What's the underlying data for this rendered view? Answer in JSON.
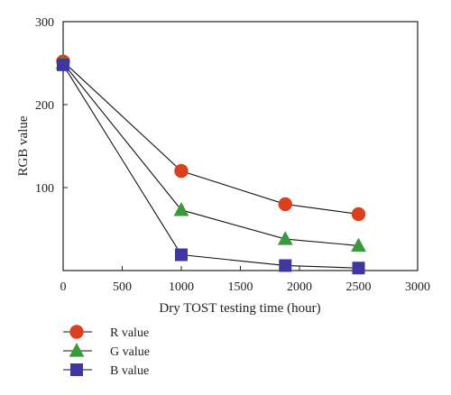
{
  "chart_data": {
    "type": "line",
    "title": "",
    "xlabel": "Dry TOST testing time (hour)",
    "ylabel": "RGB value",
    "xlim": [
      0,
      3000
    ],
    "ylim": [
      0,
      300
    ],
    "xticks": [
      0,
      500,
      1000,
      1500,
      2000,
      2500,
      3000
    ],
    "yticks": [
      100,
      200,
      300
    ],
    "ytick_labels_shown": [
      "100",
      "200",
      "300"
    ],
    "xtick_labels": [
      "0",
      "500",
      "1000",
      "1500",
      "2000",
      "2500",
      "3000"
    ],
    "grid": false,
    "legend_position": "bottom-left, below chart",
    "series": [
      {
        "name": "R value",
        "marker": "circle",
        "color": "#d9401e",
        "x": [
          0,
          1000,
          1880,
          2500
        ],
        "y": [
          252,
          120,
          80,
          68
        ]
      },
      {
        "name": "G value",
        "marker": "triangle",
        "color": "#3a9a3a",
        "x": [
          0,
          1000,
          1880,
          2500
        ],
        "y": [
          250,
          73,
          38,
          30
        ]
      },
      {
        "name": "B value",
        "marker": "square",
        "color": "#3f37a0",
        "x": [
          0,
          1000,
          1880,
          2500
        ],
        "y": [
          248,
          19,
          6,
          3
        ]
      }
    ]
  }
}
